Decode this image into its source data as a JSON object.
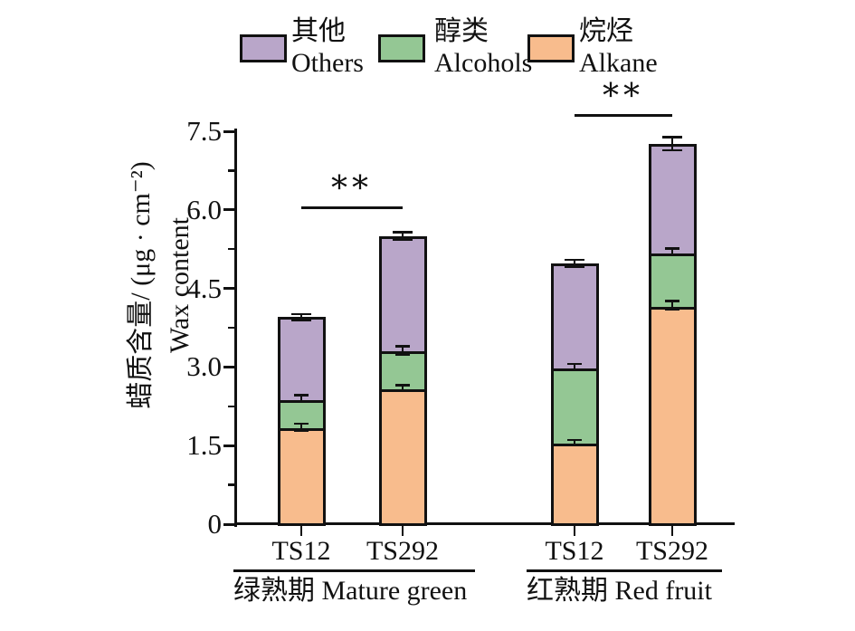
{
  "figure_title": "",
  "axis": {
    "ylabel_cn": "蜡质含量/ (μg · cm⁻²)",
    "ylabel_en": "Wax content"
  },
  "chart_data": {
    "type": "bar",
    "stacked": true,
    "title": "",
    "xlabel": "",
    "ylabel": "蜡质含量/ (μg · cm⁻²) Wax content",
    "ylim": [
      0,
      7.5
    ],
    "yticks": [
      0,
      1.5,
      3.0,
      4.5,
      6.0,
      7.5
    ],
    "ytick_labels": [
      "0",
      "1.5",
      "3.0",
      "4.5",
      "6.0",
      "7.5"
    ],
    "minor_yticks": [
      0.75,
      2.25,
      3.75,
      5.25,
      6.75
    ],
    "grid": false,
    "legend_position": "top",
    "series_order_bottom_to_top": [
      "烷烃 Alkane",
      "醇类 Alcohols",
      "其他 Others"
    ],
    "colors": {
      "others": "#b9a6c9",
      "alcohols": "#94c794",
      "alkane": "#f8bc8d",
      "axis": "#111111"
    },
    "legend": [
      {
        "label_cn": "其他",
        "label_en": "Others",
        "color": "#b9a6c9"
      },
      {
        "label_cn": "醇类",
        "label_en": "Alcohols",
        "color": "#94c794"
      },
      {
        "label_cn": "烷烃",
        "label_en": "Alkane",
        "color": "#f8bc8d"
      }
    ],
    "groups": [
      {
        "label_cn": "绿熟期",
        "label_en": "Mature green",
        "significance": "**",
        "bars": [
          {
            "label": "TS12",
            "alkane": 1.85,
            "alcohols": 0.55,
            "others": 1.55,
            "total": 3.95,
            "errors": {
              "alkane": 0.07,
              "alcohols_top": 0.07,
              "total": 0.06
            }
          },
          {
            "label": "TS292",
            "alkane": 2.6,
            "alcohols": 0.72,
            "others": 2.18,
            "total": 5.5,
            "errors": {
              "alkane": 0.06,
              "alcohols_top": 0.08,
              "total": 0.08
            }
          }
        ]
      },
      {
        "label_cn": "红熟期",
        "label_en": "Red fruit",
        "significance": "**",
        "bars": [
          {
            "label": "TS12",
            "alkane": 1.56,
            "alcohols": 1.44,
            "others": 1.98,
            "total": 4.98,
            "errors": {
              "alkane": 0.05,
              "alcohols_top": 0.06,
              "total": 0.07
            }
          },
          {
            "label": "TS292",
            "alkane": 4.18,
            "alcohols": 1.02,
            "others": 2.06,
            "total": 7.26,
            "errors": {
              "alkane": 0.08,
              "alcohols_top": 0.07,
              "total": 0.13
            }
          }
        ]
      }
    ]
  }
}
